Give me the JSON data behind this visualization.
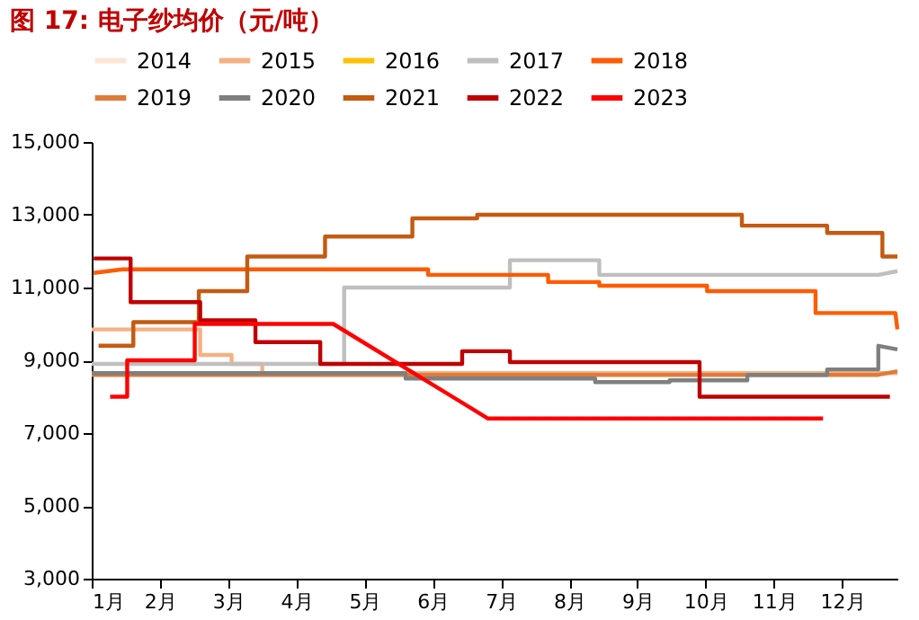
{
  "chart_data": {
    "type": "line",
    "title": "图 17: 电子纱均价（元/吨）",
    "legend": "top",
    "grid": false,
    "xlim": [
      1,
      12.81
    ],
    "xticks": [
      {
        "value": 1,
        "label": "1月"
      },
      {
        "value": 2,
        "label": "2月"
      },
      {
        "value": 3,
        "label": "3月"
      },
      {
        "value": 4,
        "label": "4月"
      },
      {
        "value": 5,
        "label": "5月"
      },
      {
        "value": 6,
        "label": "6月"
      },
      {
        "value": 7,
        "label": "7月"
      },
      {
        "value": 8,
        "label": "8月"
      },
      {
        "value": 9,
        "label": "9月"
      },
      {
        "value": 10,
        "label": "10月"
      },
      {
        "value": 11,
        "label": "11月"
      },
      {
        "value": 12,
        "label": "12月"
      }
    ],
    "ylim": [
      3000,
      15000
    ],
    "yticks": [
      {
        "value": 3000,
        "label": "3,000"
      },
      {
        "value": 5000,
        "label": "5,000"
      },
      {
        "value": 7000,
        "label": "7,000"
      },
      {
        "value": 9000,
        "label": "9,000"
      },
      {
        "value": 11000,
        "label": "11,000"
      },
      {
        "value": 13000,
        "label": "13,000"
      },
      {
        "value": 15000,
        "label": "15,000"
      }
    ],
    "series": [
      {
        "name": "2014",
        "color": "#fbe5d6"
      },
      {
        "name": "2015",
        "color": "#f4b183",
        "x": [
          1,
          2.59,
          2.59,
          3.05,
          3.05,
          3.5,
          3.5,
          12.81
        ],
        "values": [
          9850,
          9850,
          9150,
          9150,
          8900,
          8900,
          8650,
          8650
        ]
      },
      {
        "name": "2016",
        "color": "#ffc000"
      },
      {
        "name": "2017",
        "color": "#bfbfbf",
        "x": [
          1,
          4.7,
          4.7,
          7.13,
          7.13,
          8.44,
          8.44,
          12.53,
          12.81
        ],
        "values": [
          8900,
          8900,
          11000,
          11000,
          11750,
          11750,
          11350,
          11350,
          11450
        ]
      },
      {
        "name": "2018",
        "color": "#ff5b00",
        "x": [
          1.03,
          1.45,
          5.93,
          5.93,
          7.69,
          7.69,
          8.44,
          8.44,
          10.02,
          10.02,
          11.61,
          11.61,
          12.78,
          12.81
        ],
        "values": [
          11400,
          11500,
          11500,
          11350,
          11350,
          11150,
          11150,
          11050,
          11050,
          10900,
          10900,
          10300,
          10300,
          9850
        ]
      },
      {
        "name": "2019",
        "color": "#e07b39",
        "x": [
          1,
          12.53,
          12.81
        ],
        "values": [
          8600,
          8600,
          8700
        ]
      },
      {
        "name": "2020",
        "color": "#7f7f7f",
        "x": [
          1,
          5.6,
          5.6,
          8.38,
          8.38,
          9.47,
          9.47,
          10.61,
          10.61,
          11.78,
          11.78,
          12.53,
          12.53,
          12.81
        ],
        "values": [
          8650,
          8650,
          8500,
          8500,
          8400,
          8400,
          8450,
          8450,
          8600,
          8600,
          8750,
          8750,
          9400,
          9300
        ]
      },
      {
        "name": "2021",
        "color": "#c55a11",
        "x": [
          1.1,
          1.61,
          1.61,
          2.57,
          2.57,
          3.28,
          3.28,
          4.42,
          4.42,
          5.7,
          5.7,
          6.65,
          6.65,
          10.53,
          10.53,
          11.78,
          11.78,
          12.59,
          12.59,
          12.81
        ],
        "values": [
          9400,
          9400,
          10050,
          10050,
          10900,
          10900,
          11850,
          11850,
          12400,
          12400,
          12900,
          12900,
          13000,
          13000,
          12700,
          12700,
          12500,
          12500,
          11850,
          11850
        ]
      },
      {
        "name": "2022",
        "color": "#c00000",
        "x": [
          1.03,
          1.57,
          1.57,
          2.59,
          2.59,
          3.4,
          3.4,
          4.35,
          4.35,
          6.43,
          6.43,
          7.13,
          7.13,
          9.91,
          9.91,
          12.7
        ],
        "values": [
          11800,
          11800,
          10600,
          10600,
          10100,
          10100,
          9500,
          9500,
          8900,
          8900,
          9250,
          9250,
          8950,
          8950,
          8000,
          8000
        ]
      },
      {
        "name": "2023",
        "color": "#ff0000",
        "x": [
          1.27,
          1.52,
          1.52,
          2.51,
          2.51,
          4.54,
          6.81,
          11.72
        ],
        "values": [
          8000,
          8000,
          9000,
          9000,
          10000,
          10000,
          7400,
          7400
        ]
      }
    ]
  }
}
